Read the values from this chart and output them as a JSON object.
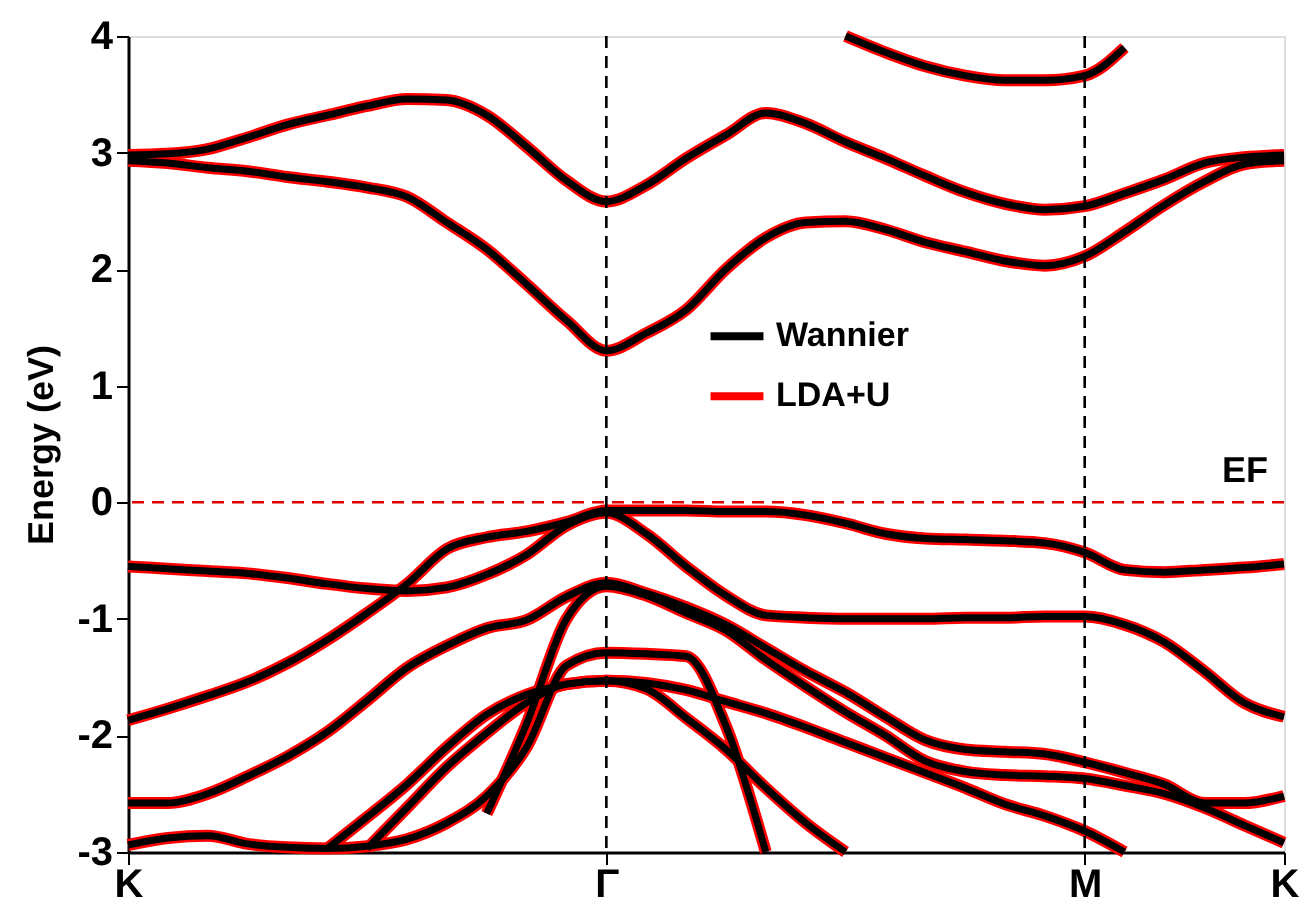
{
  "chart_data": {
    "type": "line",
    "ylabel": "Energy (eV)",
    "categories": [
      "K",
      null,
      null,
      null,
      null,
      null,
      null,
      null,
      null,
      null,
      null,
      null,
      "Γ",
      null,
      null,
      null,
      null,
      null,
      null,
      null,
      null,
      null,
      null,
      null,
      "M",
      null,
      null,
      null,
      null,
      "K"
    ],
    "ylim": [
      -3,
      4
    ],
    "yticks": [
      -3,
      -2,
      -1,
      0,
      1,
      2,
      3,
      4
    ],
    "legend": "center",
    "line_style": "solid",
    "ref_lines": [
      {
        "axis": "x",
        "value": "Γ",
        "color": "#000000",
        "line_style": "dashed"
      },
      {
        "axis": "x",
        "value": "M",
        "color": "#000000",
        "line_style": "dashed"
      },
      {
        "axis": "y",
        "value": 0,
        "label": "EF",
        "color": "#e00000",
        "line_style": "dashed"
      }
    ],
    "series": [
      {
        "name": "LDA+U",
        "color": "#ff0000",
        "values": [
          2.98,
          2.99,
          3.03,
          3.13,
          3.24,
          3.32,
          3.4,
          3.46,
          3.45,
          3.32,
          3.05,
          2.76,
          2.58,
          2.72,
          2.95,
          3.15,
          3.34,
          3.25,
          3.09,
          2.95,
          2.8,
          2.66,
          2.56,
          2.51,
          2.54,
          2.65,
          2.77,
          2.91,
          2.96,
          2.98
        ]
      },
      {
        "color": "#ff0000",
        "values": [
          2.93,
          2.91,
          2.87,
          2.84,
          2.79,
          2.75,
          2.7,
          2.62,
          2.4,
          2.17,
          1.87,
          1.56,
          1.3,
          1.45,
          1.65,
          2.0,
          2.27,
          2.4,
          2.41,
          2.34,
          2.23,
          2.15,
          2.07,
          2.03,
          2.11,
          2.32,
          2.55,
          2.75,
          2.9,
          2.93
        ]
      },
      {
        "color": "#ff0000",
        "values": [
          null,
          null,
          null,
          null,
          null,
          null,
          null,
          null,
          null,
          null,
          null,
          null,
          null,
          null,
          null,
          null,
          null,
          null,
          4.0,
          3.86,
          3.74,
          3.66,
          3.62,
          3.62,
          3.66,
          3.9,
          null,
          null,
          null,
          null
        ]
      },
      {
        "color": "#ff0000",
        "values": [
          -0.55,
          -0.57,
          -0.59,
          -0.61,
          -0.65,
          -0.7,
          -0.74,
          -0.76,
          -0.73,
          -0.62,
          -0.45,
          -0.2,
          -0.09,
          -0.27,
          -0.55,
          -0.8,
          -0.97,
          -0.99,
          -1.0,
          -1.0,
          -1.0,
          -0.99,
          -0.99,
          -0.98,
          -0.98,
          -1.05,
          -1.2,
          -1.45,
          -1.72,
          -1.84
        ]
      },
      {
        "color": "#ff0000",
        "values": [
          -1.87,
          -1.77,
          -1.66,
          -1.54,
          -1.38,
          -1.18,
          -0.95,
          -0.7,
          -0.4,
          -0.3,
          -0.25,
          -0.17,
          -0.07,
          -0.07,
          -0.07,
          -0.08,
          -0.08,
          -0.11,
          -0.18,
          -0.27,
          -0.31,
          -0.32,
          -0.33,
          -0.35,
          -0.43,
          -0.58,
          -0.6,
          -0.58,
          -0.56,
          -0.53
        ]
      },
      {
        "color": "#ff0000",
        "values": [
          -2.58,
          -2.58,
          -2.5,
          -2.35,
          -2.18,
          -1.97,
          -1.7,
          -1.42,
          -1.23,
          -1.08,
          -1.01,
          -0.81,
          -0.69,
          -0.78,
          -0.9,
          -1.05,
          -1.25,
          -1.45,
          -1.63,
          -1.84,
          -2.04,
          -2.12,
          -2.14,
          -2.16,
          -2.23,
          -2.32,
          -2.42,
          -2.58,
          -2.58,
          -2.52
        ]
      },
      {
        "color": "#ff0000",
        "values": [
          null,
          null,
          null,
          null,
          null,
          null,
          null,
          null,
          null,
          -2.67,
          -1.9,
          -1.0,
          -0.72,
          -0.8,
          -0.95,
          -1.1,
          -1.35,
          -1.58,
          -1.8,
          -2.0,
          -2.22,
          -2.31,
          -2.34,
          -2.35,
          -2.37,
          -2.43,
          -2.5,
          -2.62,
          -2.77,
          -2.92
        ]
      },
      {
        "color": "#ff0000",
        "values": [
          -2.94,
          -2.88,
          -2.86,
          -2.93,
          -2.96,
          -2.97,
          -2.95,
          -2.89,
          -2.75,
          -2.52,
          -2.1,
          -1.4,
          -1.29,
          -1.3,
          -1.32,
          -1.92,
          -3.0,
          null,
          null,
          null,
          null,
          null,
          null,
          null,
          null,
          null,
          null,
          null,
          null,
          null
        ]
      },
      {
        "color": "#ff0000",
        "values": [
          null,
          null,
          null,
          null,
          null,
          -2.97,
          -2.7,
          -2.42,
          -2.1,
          -1.82,
          -1.65,
          -1.56,
          -1.53,
          -1.55,
          -1.61,
          -1.71,
          -1.81,
          -1.93,
          -2.06,
          -2.19,
          -2.32,
          -2.45,
          -2.59,
          -2.69,
          -2.82,
          -3.0,
          null,
          null,
          null,
          null
        ]
      },
      {
        "color": "#ff0000",
        "values": [
          null,
          null,
          null,
          null,
          null,
          null,
          -2.97,
          -2.62,
          -2.27,
          -1.98,
          -1.72,
          -1.56,
          -1.53,
          -1.6,
          -1.85,
          -2.12,
          -2.45,
          -2.75,
          -3.0,
          null,
          null,
          null,
          null,
          null,
          null,
          null,
          null,
          null,
          null,
          null
        ]
      },
      {
        "name": "Wannier",
        "color": "#000000",
        "values": [
          2.98,
          2.99,
          3.03,
          3.13,
          3.24,
          3.32,
          3.4,
          3.46,
          3.45,
          3.32,
          3.05,
          2.76,
          2.58,
          2.72,
          2.95,
          3.15,
          3.34,
          3.25,
          3.09,
          2.95,
          2.8,
          2.66,
          2.56,
          2.51,
          2.54,
          2.65,
          2.77,
          2.91,
          2.96,
          2.98
        ]
      },
      {
        "color": "#000000",
        "values": [
          2.93,
          2.91,
          2.87,
          2.84,
          2.79,
          2.75,
          2.7,
          2.62,
          2.4,
          2.17,
          1.87,
          1.56,
          1.3,
          1.45,
          1.65,
          2.0,
          2.27,
          2.4,
          2.41,
          2.34,
          2.23,
          2.15,
          2.07,
          2.03,
          2.11,
          2.32,
          2.55,
          2.75,
          2.9,
          2.93
        ]
      },
      {
        "color": "#000000",
        "values": [
          null,
          null,
          null,
          null,
          null,
          null,
          null,
          null,
          null,
          null,
          null,
          null,
          null,
          null,
          null,
          null,
          null,
          null,
          4.0,
          3.86,
          3.74,
          3.66,
          3.62,
          3.62,
          3.66,
          3.9,
          null,
          null,
          null,
          null
        ]
      },
      {
        "color": "#000000",
        "values": [
          -0.55,
          -0.57,
          -0.59,
          -0.61,
          -0.65,
          -0.7,
          -0.74,
          -0.76,
          -0.73,
          -0.62,
          -0.45,
          -0.2,
          -0.09,
          -0.27,
          -0.55,
          -0.8,
          -0.97,
          -0.99,
          -1.0,
          -1.0,
          -1.0,
          -0.99,
          -0.99,
          -0.98,
          -0.98,
          -1.05,
          -1.2,
          -1.45,
          -1.72,
          -1.84
        ]
      },
      {
        "color": "#000000",
        "values": [
          -1.87,
          -1.77,
          -1.66,
          -1.54,
          -1.38,
          -1.18,
          -0.95,
          -0.7,
          -0.4,
          -0.3,
          -0.25,
          -0.17,
          -0.07,
          -0.07,
          -0.07,
          -0.08,
          -0.08,
          -0.11,
          -0.18,
          -0.27,
          -0.31,
          -0.32,
          -0.33,
          -0.35,
          -0.43,
          -0.58,
          -0.6,
          -0.58,
          -0.56,
          -0.53
        ]
      },
      {
        "color": "#000000",
        "values": [
          -2.58,
          -2.58,
          -2.5,
          -2.35,
          -2.18,
          -1.97,
          -1.7,
          -1.42,
          -1.23,
          -1.08,
          -1.01,
          -0.81,
          -0.69,
          -0.78,
          -0.9,
          -1.05,
          -1.25,
          -1.45,
          -1.63,
          -1.84,
          -2.04,
          -2.12,
          -2.14,
          -2.16,
          -2.23,
          -2.32,
          -2.42,
          -2.58,
          -2.58,
          -2.52
        ]
      },
      {
        "color": "#000000",
        "values": [
          null,
          null,
          null,
          null,
          null,
          null,
          null,
          null,
          null,
          -2.67,
          -1.9,
          -1.0,
          -0.72,
          -0.8,
          -0.95,
          -1.1,
          -1.35,
          -1.58,
          -1.8,
          -2.0,
          -2.22,
          -2.31,
          -2.34,
          -2.35,
          -2.37,
          -2.43,
          -2.5,
          -2.62,
          -2.77,
          -2.92
        ]
      },
      {
        "color": "#000000",
        "values": [
          -2.94,
          -2.88,
          -2.86,
          -2.93,
          -2.96,
          -2.97,
          -2.95,
          -2.89,
          -2.75,
          -2.52,
          -2.1,
          -1.4,
          -1.29,
          -1.3,
          -1.32,
          -1.92,
          -3.0,
          null,
          null,
          null,
          null,
          null,
          null,
          null,
          null,
          null,
          null,
          null,
          null,
          null
        ]
      },
      {
        "color": "#000000",
        "values": [
          null,
          null,
          null,
          null,
          null,
          -2.97,
          -2.7,
          -2.42,
          -2.1,
          -1.82,
          -1.65,
          -1.56,
          -1.53,
          -1.55,
          -1.61,
          -1.71,
          -1.81,
          -1.93,
          -2.06,
          -2.19,
          -2.32,
          -2.45,
          -2.59,
          -2.69,
          -2.82,
          -3.0,
          null,
          null,
          null,
          null
        ]
      },
      {
        "color": "#000000",
        "values": [
          null,
          null,
          null,
          null,
          null,
          null,
          -2.97,
          -2.62,
          -2.27,
          -1.98,
          -1.72,
          -1.56,
          -1.53,
          -1.6,
          -1.85,
          -2.12,
          -2.45,
          -2.75,
          -3.0,
          null,
          null,
          null,
          null,
          null,
          null,
          null,
          null,
          null,
          null,
          null
        ]
      }
    ]
  }
}
